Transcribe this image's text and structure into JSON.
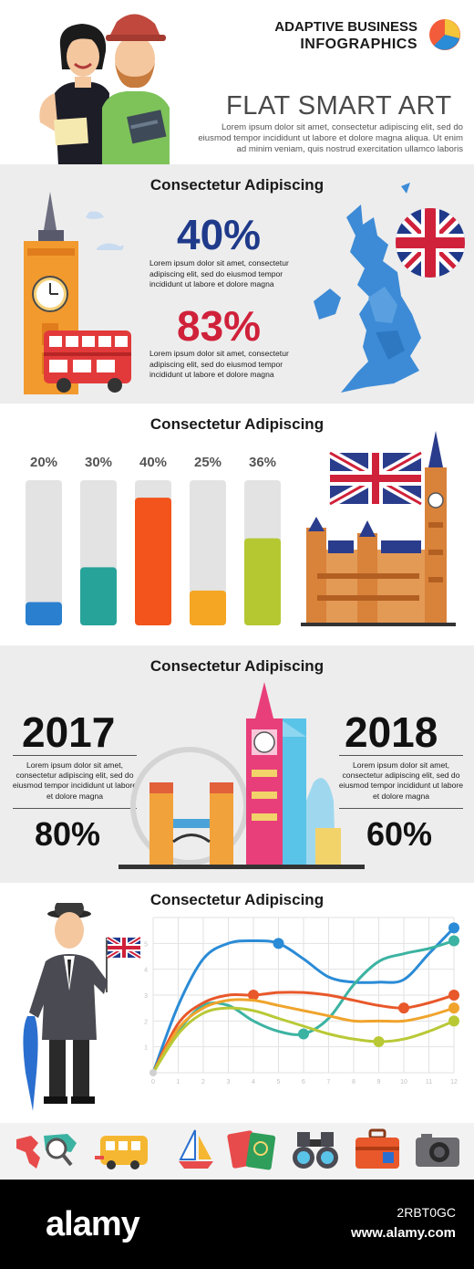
{
  "header": {
    "brand_line1": "ADAPTIVE BUSINESS",
    "brand_line2": "INFOGRAPHICS",
    "title": "FLAT SMART ART",
    "lead": "Lorem ipsum dolor sit amet, consectetur adipiscing elit, sed do eiusmod tempor incididunt ut labore et dolore magna aliqua. Ut enim ad minim veniam, quis nostrud exercitation ullamco laboris"
  },
  "section1": {
    "title": "Consectetur Adipiscing",
    "stat1_value": "40%",
    "stat1_text": "Lorem ipsum dolor sit amet, consectetur adipiscing elit, sed do eiusmod tempor incididunt ut labore et dolore magna",
    "stat2_value": "83%",
    "stat2_text": "Lorem ipsum dolor sit amet, consectetur adipiscing elit, sed do eiusmod tempor incididunt ut labore et dolore magna",
    "colors": {
      "stat1": "#1f3a8a",
      "stat2": "#d0213a",
      "map": "#3d8bd6"
    }
  },
  "section3": {
    "title": "Consectetur Adipiscing",
    "left_year": "2017",
    "left_text": "Lorem ipsum dolor sit amet, consectetur adipiscing elit, sed do eiusmod tempor incididunt ut labore et dolore magna",
    "left_pct": "80%",
    "right_year": "2018",
    "right_text": "Lorem ipsum dolor sit amet, consectetur adipiscing elit, sed do eiusmod tempor incididunt ut labore et dolore magna",
    "right_pct": "60%"
  },
  "icons": [
    "world-map-icon",
    "bus-icon",
    "sailboat-icon",
    "passport-icon",
    "binoculars-icon",
    "suitcase-icon",
    "camera-icon"
  ],
  "footer": {
    "logo": "alamy",
    "image_id": "2RBT0GC",
    "url": "www.alamy.com"
  },
  "chart_data": [
    {
      "type": "bar",
      "title": "Consectetur Adipiscing",
      "categories": [
        "",
        "",
        "",
        "",
        ""
      ],
      "values": [
        20,
        30,
        40,
        25,
        36
      ],
      "value_labels": [
        "20%",
        "30%",
        "40%",
        "25%",
        "36%"
      ],
      "ylim": [
        0,
        100
      ],
      "fill_fractions": [
        0.16,
        0.4,
        0.88,
        0.24,
        0.6
      ],
      "colors": [
        "#2a7fcf",
        "#27a39a",
        "#f2541b",
        "#f5a623",
        "#b5c832"
      ],
      "track_color": "#e3e3e3"
    },
    {
      "type": "line",
      "title": "Consectetur Adipiscing",
      "x": [
        0,
        1,
        2,
        3,
        4,
        5,
        6,
        7,
        8,
        9,
        10,
        11,
        12
      ],
      "xlim": [
        0,
        12
      ],
      "ylim": [
        0,
        6
      ],
      "yticks": [
        1,
        2,
        3,
        4,
        5
      ],
      "grid": true,
      "series": [
        {
          "color": "#2a8bd6",
          "points": [
            [
              0,
              0
            ],
            [
              5,
              5
            ],
            [
              12,
              5.6
            ]
          ],
          "path_y": [
            0,
            2.6,
            4.4,
            5.0,
            5.1,
            5.0,
            4.4,
            3.7,
            3.5,
            3.5,
            3.6,
            4.6,
            5.6
          ]
        },
        {
          "color": "#3cb3a2",
          "points": [
            [
              0,
              0
            ],
            [
              6,
              1.5
            ],
            [
              12,
              5.1
            ]
          ],
          "path_y": [
            0,
            1.6,
            2.6,
            2.6,
            2.0,
            1.6,
            1.5,
            2.1,
            3.4,
            4.3,
            4.6,
            4.8,
            5.1
          ]
        },
        {
          "color": "#e8582a",
          "points": [
            [
              0,
              0
            ],
            [
              4,
              3
            ],
            [
              10,
              2.5
            ],
            [
              12,
              3
            ]
          ],
          "path_y": [
            0,
            1.9,
            2.7,
            3.0,
            3.0,
            3.1,
            3.1,
            3.0,
            2.8,
            2.6,
            2.5,
            2.7,
            3.0
          ]
        },
        {
          "color": "#f0a42c",
          "points": [
            [
              0,
              0
            ],
            [
              12,
              2.5
            ]
          ],
          "path_y": [
            0,
            1.7,
            2.5,
            2.8,
            2.8,
            2.6,
            2.4,
            2.2,
            2.0,
            2.0,
            2.0,
            2.2,
            2.5
          ]
        },
        {
          "color": "#b9c936",
          "points": [
            [
              0,
              0
            ],
            [
              9,
              1.2
            ],
            [
              12,
              2
            ]
          ],
          "path_y": [
            0,
            1.5,
            2.3,
            2.5,
            2.4,
            2.1,
            1.8,
            1.5,
            1.3,
            1.2,
            1.3,
            1.6,
            2.0
          ]
        }
      ]
    }
  ]
}
